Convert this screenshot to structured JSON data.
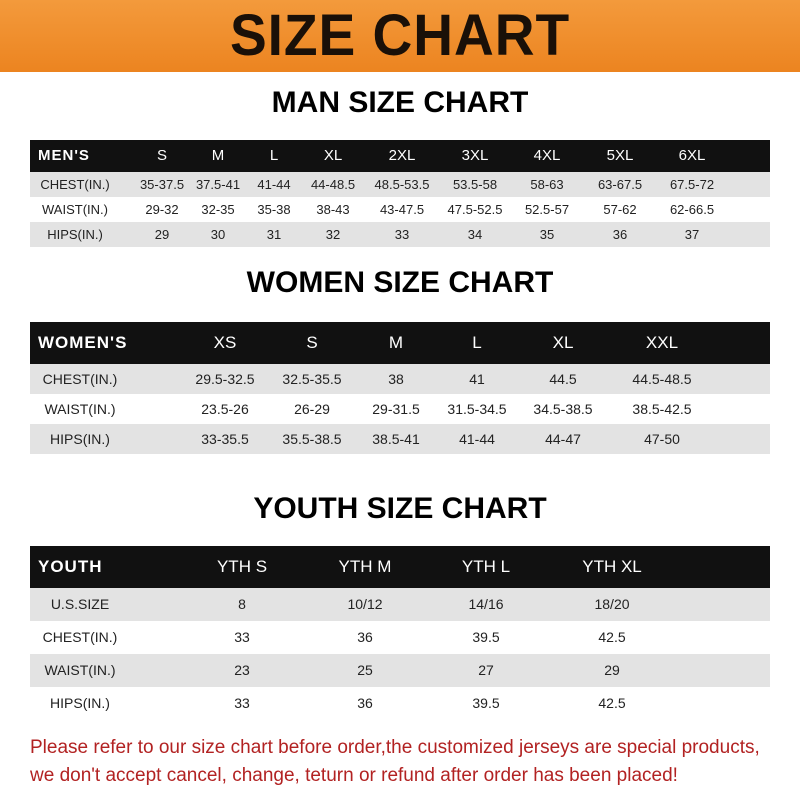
{
  "banner": {
    "title": "SIZE CHART",
    "color": "#ef8a28"
  },
  "men": {
    "title": "MAN SIZE CHART",
    "header": [
      "MEN'S",
      "S",
      "M",
      "L",
      "XL",
      "2XL",
      "3XL",
      "4XL",
      "5XL",
      "6XL"
    ],
    "rows": [
      [
        "CHEST(IN.)",
        "35-37.5",
        "37.5-41",
        "41-44",
        "44-48.5",
        "48.5-53.5",
        "53.5-58",
        "58-63",
        "63-67.5",
        "67.5-72"
      ],
      [
        "WAIST(IN.)",
        "29-32",
        "32-35",
        "35-38",
        "38-43",
        "43-47.5",
        "47.5-52.5",
        "52.5-57",
        "57-62",
        "62-66.5"
      ],
      [
        "HIPS(IN.)",
        "29",
        "30",
        "31",
        "32",
        "33",
        "34",
        "35",
        "36",
        "37"
      ]
    ]
  },
  "women": {
    "title": "WOMEN SIZE CHART",
    "header": [
      "WOMEN'S",
      "XS",
      "S",
      "M",
      "L",
      "XL",
      "XXL"
    ],
    "rows": [
      [
        "CHEST(IN.)",
        "29.5-32.5",
        "32.5-35.5",
        "38",
        "41",
        "44.5",
        "44.5-48.5"
      ],
      [
        "WAIST(IN.)",
        "23.5-26",
        "26-29",
        "29-31.5",
        "31.5-34.5",
        "34.5-38.5",
        "38.5-42.5"
      ],
      [
        "HIPS(IN.)",
        "33-35.5",
        "35.5-38.5",
        "38.5-41",
        "41-44",
        "44-47",
        "47-50"
      ]
    ]
  },
  "youth": {
    "title": "YOUTH SIZE CHART",
    "header": [
      "YOUTH",
      "YTH S",
      "YTH M",
      "YTH L",
      "YTH XL"
    ],
    "rows": [
      [
        "U.S.SIZE",
        "8",
        "10/12",
        "14/16",
        "18/20"
      ],
      [
        "CHEST(IN.)",
        "33",
        "36",
        "39.5",
        "42.5"
      ],
      [
        "WAIST(IN.)",
        "23",
        "25",
        "27",
        "29"
      ],
      [
        "HIPS(IN.)",
        "33",
        "36",
        "39.5",
        "42.5"
      ]
    ]
  },
  "footer": {
    "line1": "Please refer to our size chart before order,the customized jerseys are special products,",
    "line2": "we don't accept cancel, change, teturn or refund after order has been placed!"
  }
}
